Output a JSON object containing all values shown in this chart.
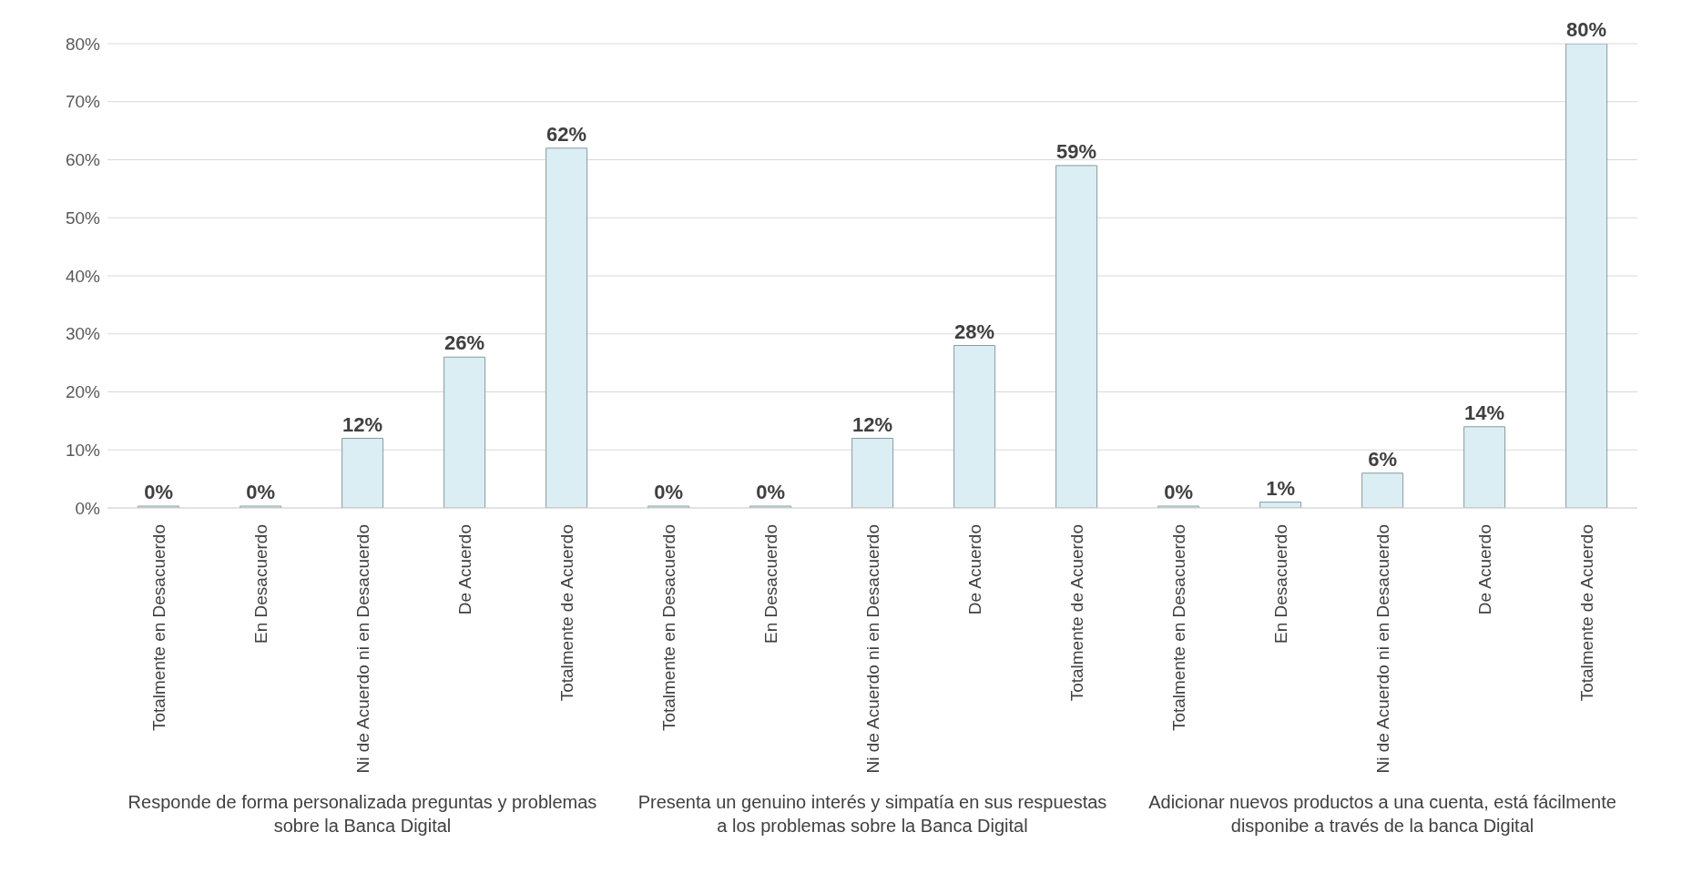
{
  "chart_data": {
    "type": "bar",
    "categories": [
      "Totalmente en Desacuerdo",
      "En Desacuerdo",
      "Ni de Acuerdo ni en Desacuerdo",
      "De Acuerdo",
      "Totalmente de Acuerdo",
      "Totalmente en Desacuerdo",
      "En Desacuerdo",
      "Ni de Acuerdo ni en Desacuerdo",
      "De Acuerdo",
      "Totalmente de Acuerdo",
      "Totalmente en Desacuerdo",
      "En Desacuerdo",
      "Ni de Acuerdo ni en Desacuerdo",
      "De Acuerdo",
      "Totalmente de Acuerdo"
    ],
    "values": [
      0,
      0,
      12,
      26,
      62,
      0,
      0,
      12,
      28,
      59,
      0,
      1,
      6,
      14,
      80
    ],
    "value_labels": [
      "0%",
      "0%",
      "12%",
      "26%",
      "62%",
      "0%",
      "0%",
      "12%",
      "28%",
      "59%",
      "0%",
      "1%",
      "6%",
      "14%",
      "80%"
    ],
    "color": "#daeef3",
    "ylim": [
      0,
      80
    ],
    "yticks": [
      {
        "value": 0,
        "label": "0%"
      },
      {
        "value": 10,
        "label": "10%"
      },
      {
        "value": 20,
        "label": "20%"
      },
      {
        "value": 30,
        "label": "30%"
      },
      {
        "value": 40,
        "label": "40%"
      },
      {
        "value": 50,
        "label": "50%"
      },
      {
        "value": 60,
        "label": "60%"
      },
      {
        "value": 70,
        "label": "70%"
      },
      {
        "value": 80,
        "label": "80%"
      }
    ],
    "grid": "y",
    "annotations": [
      "Responde de forma personalizada preguntas y problemas sobre la Banca Digital",
      "Presenta un genuino interés y simpatía en sus respuestas a los problemas sobre la Banca Digital",
      "Adicionar nuevos productos a una cuenta, está fácilmente disponibe a través de la banca Digital"
    ]
  }
}
